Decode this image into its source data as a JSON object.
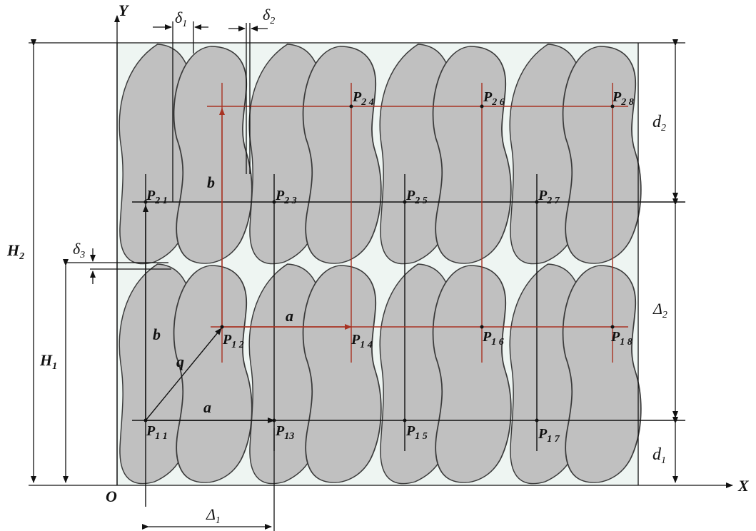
{
  "axes": {
    "x": "X",
    "y": "Y",
    "origin": "O"
  },
  "dimensions": {
    "delta_1": {
      "sym": "δ",
      "sub": "1"
    },
    "delta_2": {
      "sym": "δ",
      "sub": "2"
    },
    "delta_3": {
      "sym": "δ",
      "sub": "3"
    },
    "H_1": {
      "sym": "H",
      "sub": "1"
    },
    "H_2": {
      "sym": "H",
      "sub": "2"
    },
    "d_1": {
      "sym": "d",
      "sub": "1"
    },
    "d_2": {
      "sym": "d",
      "sub": "2"
    },
    "Delta_1": {
      "sym": "Δ",
      "sub": "1"
    },
    "Delta_2": {
      "sym": "Δ",
      "sub": "2"
    }
  },
  "vectors": {
    "a_top": "a",
    "a_bottom": "a",
    "b_top": "b",
    "b_left": "b",
    "q": "q"
  },
  "points": {
    "P21": {
      "sym": "P",
      "sub": "2 1"
    },
    "P23": {
      "sym": "P",
      "sub": "2 3"
    },
    "P25": {
      "sym": "P",
      "sub": "2 5"
    },
    "P27": {
      "sym": "P",
      "sub": "2 7"
    },
    "P24": {
      "sym": "P",
      "sub": "2 4"
    },
    "P26": {
      "sym": "P",
      "sub": "2 6"
    },
    "P28": {
      "sym": "P",
      "sub": "2 8"
    },
    "P12": {
      "sym": "P",
      "sub": "1 2"
    },
    "P14": {
      "sym": "P",
      "sub": "1 4"
    },
    "P16": {
      "sym": "P",
      "sub": "1 6"
    },
    "P18": {
      "sym": "P",
      "sub": "1 8"
    },
    "P11": {
      "sym": "P",
      "sub": "1 1"
    },
    "P13": {
      "sym": "P",
      "sub": "13"
    },
    "P15": {
      "sym": "P",
      "sub": "1 5"
    },
    "P17": {
      "sym": "P",
      "sub": "1 7"
    }
  },
  "colors": {
    "shape_fill": "#c0c0c0",
    "shape_stroke": "#3a3a3a",
    "grid_red": "#a83222",
    "grid_black": "#111111",
    "region_fill": "#eef5f2"
  }
}
